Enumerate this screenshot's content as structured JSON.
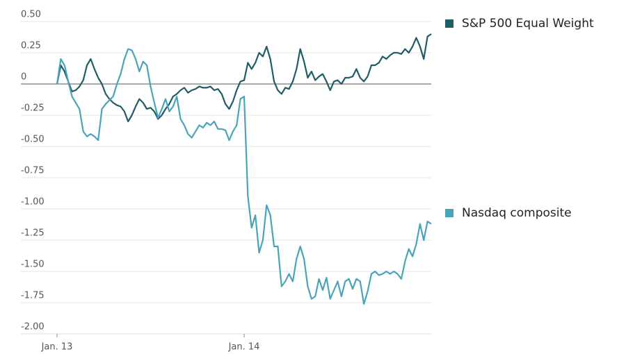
{
  "chart_data": {
    "type": "line",
    "categories": [
      "Jan. 13",
      null,
      null,
      null,
      null,
      null,
      null,
      null,
      null,
      null,
      null,
      null,
      null,
      null,
      null,
      null,
      null,
      null,
      null,
      null,
      null,
      null,
      null,
      null,
      null,
      null,
      null,
      null,
      null,
      null,
      null,
      null,
      null,
      null,
      null,
      null,
      null,
      null,
      null,
      null,
      null,
      null,
      null,
      null,
      null,
      null,
      null,
      null,
      null,
      null,
      "Jan. 14",
      null,
      null,
      null,
      null,
      null,
      null,
      null,
      null,
      null,
      null,
      null,
      null,
      null,
      null,
      null,
      null,
      null,
      null,
      null,
      null,
      null,
      null,
      null,
      null,
      null,
      null,
      null,
      null,
      null,
      null,
      null,
      null,
      null,
      null,
      null,
      null,
      null,
      null,
      null,
      null,
      null,
      null,
      null,
      null,
      null,
      null,
      null,
      null,
      null,
      null
    ],
    "series": [
      {
        "name": "S&P 500 Equal Weight",
        "color": "#1f5c66",
        "values": [
          0,
          0.15,
          0.1,
          0.02,
          -0.06,
          -0.05,
          -0.02,
          0.03,
          0.15,
          0.2,
          0.12,
          0.05,
          0.0,
          -0.08,
          -0.12,
          -0.15,
          -0.17,
          -0.18,
          -0.22,
          -0.3,
          -0.25,
          -0.18,
          -0.12,
          -0.15,
          -0.2,
          -0.19,
          -0.22,
          -0.28,
          -0.25,
          -0.2,
          -0.16,
          -0.1,
          -0.08,
          -0.05,
          -0.03,
          -0.07,
          -0.05,
          -0.04,
          -0.02,
          -0.03,
          -0.03,
          -0.02,
          -0.05,
          -0.04,
          -0.08,
          -0.16,
          -0.2,
          -0.14,
          -0.05,
          0.02,
          0.03,
          0.17,
          0.12,
          0.17,
          0.25,
          0.22,
          0.3,
          0.2,
          0.02,
          -0.05,
          -0.08,
          -0.03,
          -0.04,
          0.02,
          0.12,
          0.28,
          0.18,
          0.05,
          0.1,
          0.03,
          0.06,
          0.08,
          0.02,
          -0.05,
          0.02,
          0.03,
          0.0,
          0.05,
          0.05,
          0.06,
          0.12,
          0.05,
          0.02,
          0.06,
          0.15,
          0.15,
          0.17,
          0.22,
          0.2,
          0.23,
          0.25,
          0.25,
          0.24,
          0.28,
          0.25,
          0.3,
          0.37,
          0.3,
          0.2,
          0.38,
          0.4
        ]
      },
      {
        "name": "Nasdaq composite",
        "color": "#4ba3b9",
        "values": [
          0,
          0.2,
          0.15,
          0.02,
          -0.1,
          -0.15,
          -0.2,
          -0.38,
          -0.42,
          -0.4,
          -0.42,
          -0.45,
          -0.2,
          -0.16,
          -0.13,
          -0.1,
          0.0,
          0.08,
          0.2,
          0.28,
          0.27,
          0.2,
          0.1,
          0.18,
          0.15,
          -0.02,
          -0.15,
          -0.27,
          -0.2,
          -0.12,
          -0.22,
          -0.18,
          -0.1,
          -0.28,
          -0.33,
          -0.4,
          -0.43,
          -0.38,
          -0.33,
          -0.35,
          -0.31,
          -0.33,
          -0.3,
          -0.36,
          -0.36,
          -0.37,
          -0.45,
          -0.38,
          -0.33,
          -0.12,
          -0.1,
          -0.9,
          -1.15,
          -1.05,
          -1.35,
          -1.25,
          -0.97,
          -1.05,
          -1.3,
          -1.3,
          -1.62,
          -1.58,
          -1.52,
          -1.58,
          -1.4,
          -1.3,
          -1.4,
          -1.62,
          -1.72,
          -1.7,
          -1.56,
          -1.65,
          -1.55,
          -1.72,
          -1.65,
          -1.58,
          -1.7,
          -1.58,
          -1.56,
          -1.64,
          -1.56,
          -1.58,
          -1.76,
          -1.66,
          -1.52,
          -1.5,
          -1.53,
          -1.52,
          -1.5,
          -1.52,
          -1.5,
          -1.52,
          -1.56,
          -1.42,
          -1.32,
          -1.38,
          -1.28,
          -1.12,
          -1.25,
          -1.1,
          -1.12
        ]
      }
    ],
    "ylim": [
      -2,
      0.5
    ],
    "yticks": [
      {
        "value": 0.5,
        "label": "0.50"
      },
      0.25,
      0,
      -0.25,
      {
        "value": -0.5,
        "label": "-0.50"
      },
      -0.75,
      {
        "value": -1,
        "label": "-1.00"
      },
      -1.25,
      {
        "value": -1.5,
        "label": "-1.50"
      },
      -1.75,
      {
        "value": -2,
        "label": "-2.00"
      }
    ],
    "grid": true,
    "legend": "right"
  }
}
